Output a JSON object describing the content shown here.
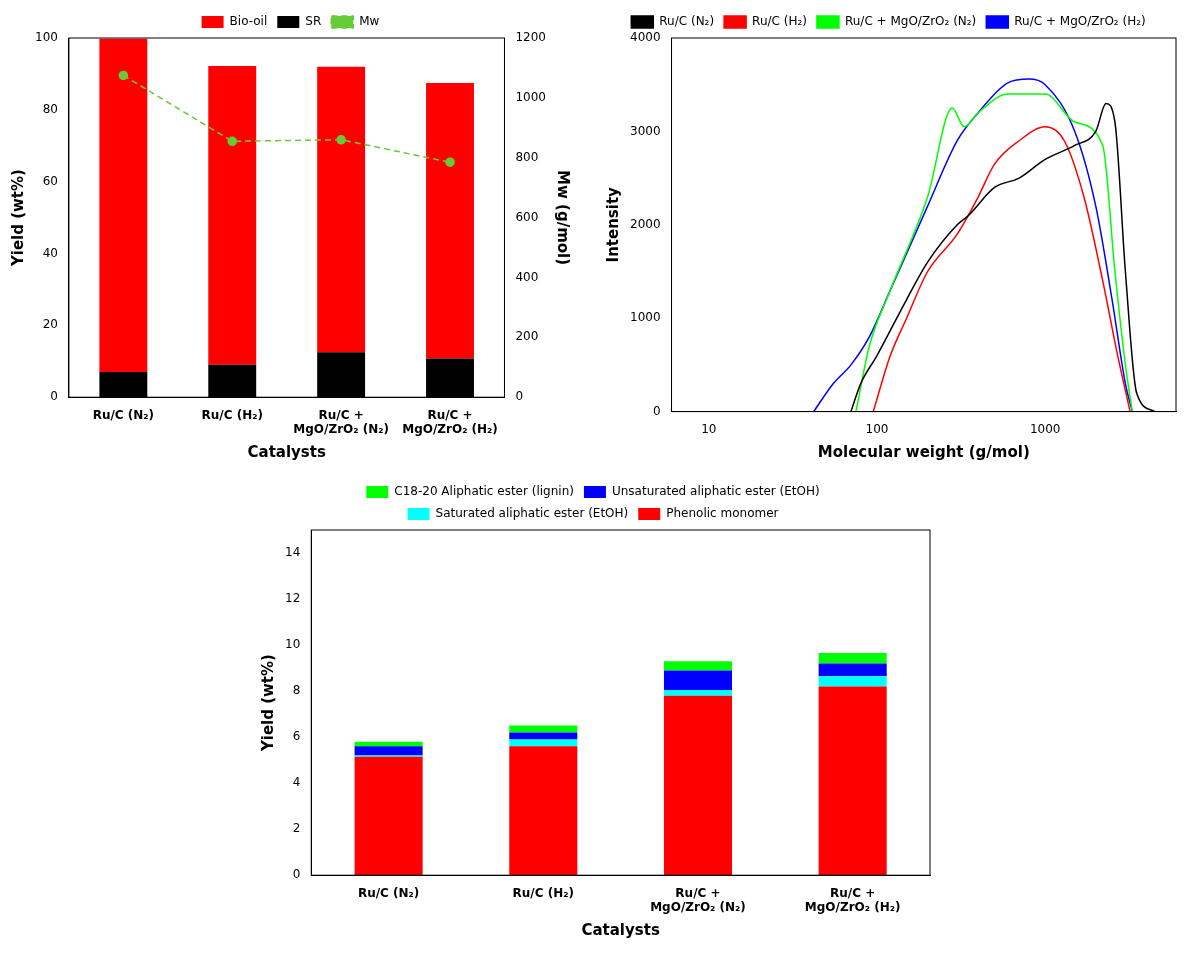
{
  "chart_data": [
    {
      "type": "bar",
      "stacked": true,
      "categories": [
        "Ru/C (N₂)",
        "Ru/C (H₂)",
        "Ru/C + MgO/ZrO₂ (N₂)",
        "Ru/C + MgO/ZrO₂ (H₂)"
      ],
      "xlabel": "Catalysts",
      "ylabel": "Yield (wt%)",
      "y2label": "Mw (g/mol)",
      "ylim": [
        0,
        100
      ],
      "yticks": [
        0,
        20,
        40,
        60,
        80,
        100
      ],
      "y2lim": [
        0,
        1200
      ],
      "y2ticks": [
        0,
        200,
        400,
        600,
        800,
        1000,
        1200
      ],
      "grid": false,
      "legend": "top",
      "series": [
        {
          "name": "SR",
          "color": "#000000",
          "values": [
            7,
            9,
            12.5,
            10.8
          ]
        },
        {
          "name": "Bio-oil",
          "color": "#ff0000",
          "values": [
            92.8,
            83.2,
            79.5,
            76.7
          ]
        },
        {
          "name": "Mw",
          "type": "line",
          "axis": "y2",
          "color": "#66cc33",
          "marker": "circle",
          "line_style": "dashed",
          "values": [
            1075,
            855,
            860,
            785
          ]
        }
      ]
    },
    {
      "type": "line",
      "log": "x",
      "xlabel": "Molecular weight (g/mol)",
      "ylabel": "Intensity",
      "xlim": [
        6,
        6000
      ],
      "xticks": [
        10,
        100,
        1000
      ],
      "ylim": [
        0,
        4000
      ],
      "yticks": [
        0,
        1000,
        2000,
        3000,
        4000
      ],
      "grid": false,
      "legend": "top",
      "series": [
        {
          "name": "Ru/C (N₂)",
          "color": "#000000",
          "x": [
            70,
            80,
            100,
            150,
            200,
            300,
            350,
            500,
            700,
            1000,
            1500,
            2000,
            2300,
            2600,
            3000,
            3500,
            4500
          ],
          "values": [
            0,
            300,
            600,
            1200,
            1600,
            2000,
            2100,
            2400,
            2500,
            2700,
            2850,
            3000,
            3300,
            3100,
            1500,
            200,
            0
          ]
        },
        {
          "name": "Ru/C (H₂)",
          "color": "#ff0000",
          "x": [
            95,
            120,
            150,
            200,
            300,
            400,
            500,
            700,
            1000,
            1300,
            1700,
            2200,
            2700,
            3200
          ],
          "values": [
            0,
            600,
            1000,
            1500,
            1900,
            2300,
            2650,
            2900,
            3050,
            2900,
            2300,
            1400,
            600,
            0
          ]
        },
        {
          "name": "Ru/C + MgO/ZrO₂ (N₂)",
          "color": "#00ff00",
          "x": [
            75,
            90,
            120,
            200,
            280,
            330,
            400,
            600,
            1000,
            1500,
            2200,
            2600,
            3000,
            3300
          ],
          "values": [
            0,
            700,
            1300,
            2300,
            3250,
            3050,
            3200,
            3400,
            3400,
            3100,
            2850,
            1500,
            500,
            0
          ]
        },
        {
          "name": "Ru/C + MgO/ZrO₂ (H₂)",
          "color": "#0000ff",
          "x": [
            42,
            55,
            70,
            90,
            120,
            200,
            300,
            400,
            600,
            800,
            1000,
            1500,
            2000,
            2500,
            3000,
            3300
          ],
          "values": [
            0,
            300,
            500,
            800,
            1300,
            2200,
            2900,
            3200,
            3520,
            3560,
            3500,
            3000,
            2200,
            1200,
            300,
            0
          ]
        }
      ]
    },
    {
      "type": "bar",
      "stacked": true,
      "categories": [
        "Ru/C (N₂)",
        "Ru/C (H₂)",
        "Ru/C + MgO/ZrO₂ (N₂)",
        "Ru/C + MgO/ZrO₂ (H₂)"
      ],
      "xlabel": "Catalysts",
      "ylabel": "Yield (wt%)",
      "ylim": [
        0,
        15
      ],
      "yticks": [
        0,
        2,
        4,
        6,
        8,
        10,
        12,
        14
      ],
      "grid": false,
      "legend": "top",
      "series": [
        {
          "name": "Phenolic monomer",
          "color": "#ff0000",
          "values": [
            5.15,
            5.6,
            7.8,
            8.2
          ]
        },
        {
          "name": "Saturated aliphatic ester (EtOH)",
          "color": "#00ffff",
          "values": [
            0.05,
            0.3,
            0.25,
            0.45
          ]
        },
        {
          "name": "Unsaturated aliphatic ester (EtOH)",
          "color": "#0000ff",
          "values": [
            0.4,
            0.3,
            0.85,
            0.55
          ]
        },
        {
          "name": "C18-20 Aliphatic ester (lignin)",
          "color": "#00ff00",
          "values": [
            0.2,
            0.3,
            0.4,
            0.45
          ]
        }
      ]
    }
  ]
}
